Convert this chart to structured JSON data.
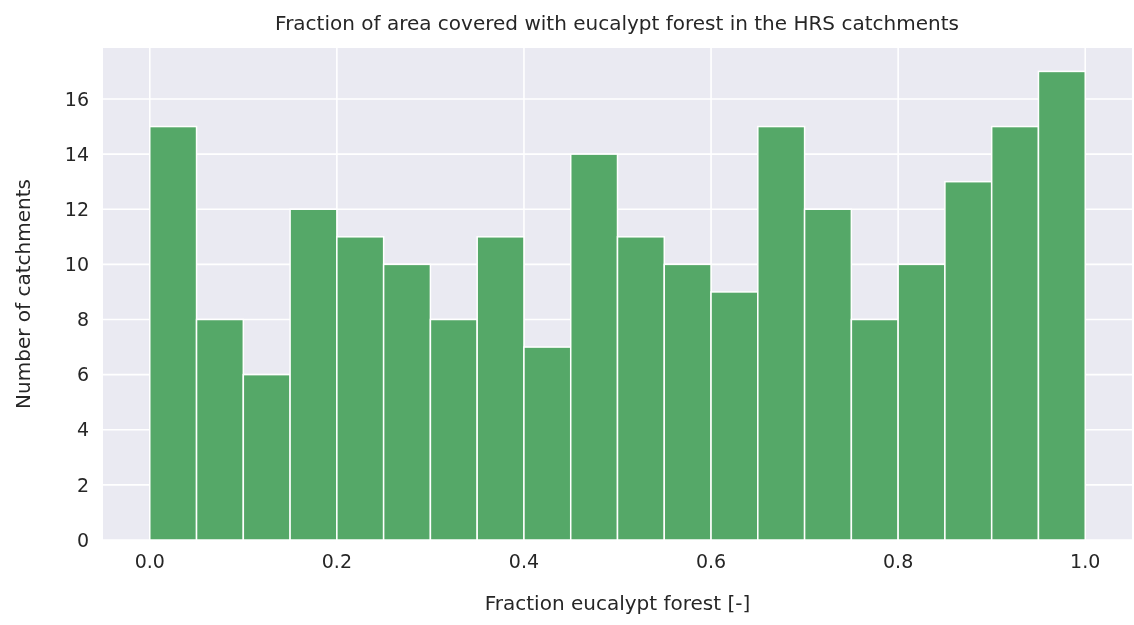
{
  "chart_data": {
    "type": "histogram",
    "title": "Fraction of area covered with eucalypt forest in the HRS catchments",
    "xlabel": "Fraction eucalypt forest [-]",
    "ylabel": "Number of catchments",
    "bins": [
      0,
      0.05,
      0.1,
      0.15,
      0.2,
      0.25,
      0.3,
      0.35,
      0.4,
      0.45,
      0.5,
      0.55,
      0.6,
      0.65,
      0.7,
      0.75,
      0.8,
      0.85,
      0.9,
      0.95,
      1.0
    ],
    "values": [
      15,
      8,
      6,
      12,
      11,
      10,
      8,
      11,
      7,
      14,
      11,
      10,
      9,
      15,
      12,
      8,
      10,
      13,
      15,
      17
    ],
    "color": "#55a868",
    "xlim": [
      -0.05,
      1.05
    ],
    "ylim": [
      0,
      17.85
    ],
    "xticks": [
      {
        "value": 0,
        "label": "0.0"
      },
      {
        "value": 0.2,
        "label": "0.2"
      },
      {
        "value": 0.4,
        "label": "0.4"
      },
      {
        "value": 0.6,
        "label": "0.6"
      },
      {
        "value": 0.8,
        "label": "0.8"
      },
      {
        "value": 1.0,
        "label": "1.0"
      }
    ],
    "yticks": [
      0,
      2,
      4,
      6,
      8,
      10,
      12,
      14,
      16
    ],
    "grid": true
  }
}
